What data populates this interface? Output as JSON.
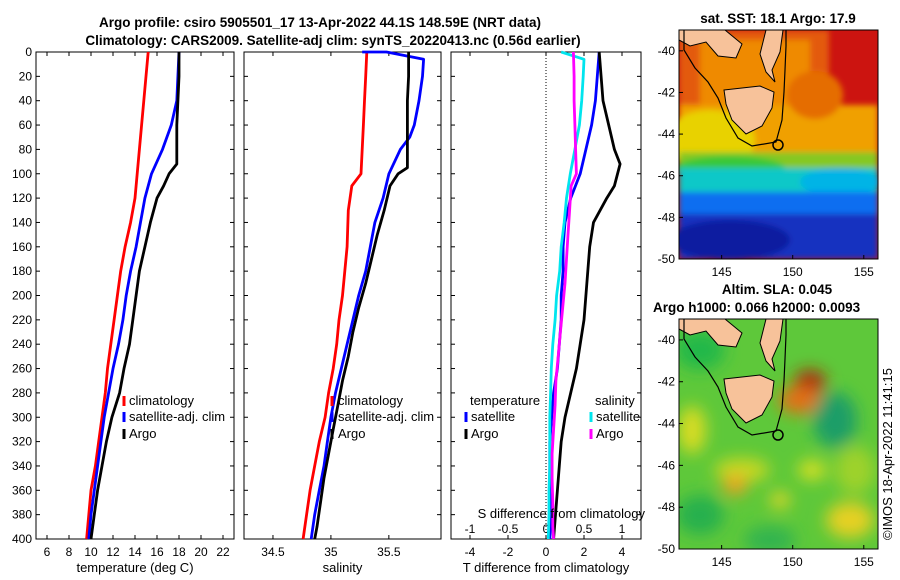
{
  "figure": {
    "title_line1": "Argo profile: csiro 5905501_17 13-Apr-2022 44.1S 148.59E (NRT data)",
    "title_line2": "Climatology: CARS2009. Satellite-adj clim: synTS_20220413.nc (0.56d earlier)",
    "credit": "©IMOS 18-Apr-2022 11:41:15"
  },
  "colors": {
    "climatology": "#ff0000",
    "satellite": "#0000ff",
    "argo": "#000000",
    "sat_salinity": "#00e5ee",
    "argo_salinity": "#ff00ff"
  },
  "chart_data": [
    {
      "id": "temperature",
      "type": "line",
      "xlabel": "temperature (deg C)",
      "ylabel": "",
      "xlim": [
        5,
        23
      ],
      "ylim": [
        400,
        0
      ],
      "xticks": [
        6,
        8,
        10,
        12,
        14,
        16,
        18,
        20,
        22
      ],
      "yticks": [
        0,
        20,
        40,
        60,
        80,
        100,
        120,
        140,
        160,
        180,
        200,
        220,
        240,
        260,
        280,
        300,
        320,
        340,
        360,
        380,
        400
      ],
      "legend": [
        "climatology",
        "satellite-adj. clim",
        "Argo"
      ],
      "series": [
        {
          "name": "climatology",
          "color": "#ff0000",
          "points": [
            [
              15.2,
              0
            ],
            [
              15.0,
              20
            ],
            [
              14.8,
              40
            ],
            [
              14.6,
              60
            ],
            [
              14.4,
              80
            ],
            [
              14.2,
              100
            ],
            [
              14.0,
              120
            ],
            [
              13.6,
              140
            ],
            [
              13.1,
              160
            ],
            [
              12.7,
              180
            ],
            [
              12.4,
              200
            ],
            [
              12.1,
              220
            ],
            [
              11.8,
              240
            ],
            [
              11.5,
              260
            ],
            [
              11.3,
              280
            ],
            [
              11.0,
              300
            ],
            [
              10.7,
              320
            ],
            [
              10.4,
              340
            ],
            [
              10.0,
              360
            ],
            [
              9.8,
              380
            ],
            [
              9.6,
              400
            ]
          ]
        },
        {
          "name": "satellite-adj. clim",
          "color": "#0000ff",
          "points": [
            [
              18.0,
              0
            ],
            [
              17.9,
              20
            ],
            [
              17.8,
              40
            ],
            [
              17.3,
              60
            ],
            [
              16.5,
              80
            ],
            [
              15.5,
              100
            ],
            [
              14.9,
              120
            ],
            [
              14.5,
              140
            ],
            [
              14.1,
              160
            ],
            [
              13.6,
              180
            ],
            [
              13.2,
              200
            ],
            [
              12.9,
              220
            ],
            [
              12.5,
              240
            ],
            [
              12.0,
              260
            ],
            [
              11.6,
              280
            ],
            [
              11.2,
              300
            ],
            [
              10.9,
              320
            ],
            [
              10.6,
              340
            ],
            [
              10.3,
              360
            ],
            [
              10.0,
              380
            ],
            [
              9.8,
              400
            ]
          ]
        },
        {
          "name": "Argo",
          "color": "#000000",
          "points": [
            [
              18.0,
              0
            ],
            [
              18.0,
              20
            ],
            [
              17.9,
              40
            ],
            [
              17.8,
              60
            ],
            [
              17.8,
              80
            ],
            [
              17.8,
              92
            ],
            [
              17.1,
              100
            ],
            [
              16.6,
              110
            ],
            [
              16.0,
              120
            ],
            [
              15.4,
              140
            ],
            [
              14.9,
              160
            ],
            [
              14.4,
              180
            ],
            [
              14.1,
              200
            ],
            [
              13.8,
              220
            ],
            [
              13.5,
              240
            ],
            [
              13.0,
              260
            ],
            [
              12.6,
              280
            ],
            [
              11.9,
              300
            ],
            [
              11.4,
              320
            ],
            [
              11.0,
              340
            ],
            [
              10.6,
              360
            ],
            [
              10.3,
              380
            ],
            [
              10.0,
              400
            ]
          ]
        }
      ]
    },
    {
      "id": "salinity",
      "type": "line",
      "xlabel": "salinity",
      "ylabel": "",
      "xlim": [
        34.25,
        35.95
      ],
      "ylim": [
        400,
        0
      ],
      "xticks": [
        34.5,
        35,
        35.5
      ],
      "legend": [
        "climatology",
        "satellite-adj. clim",
        "Argo"
      ],
      "series": [
        {
          "name": "climatology",
          "color": "#ff0000",
          "points": [
            [
              35.31,
              0
            ],
            [
              35.3,
              20
            ],
            [
              35.29,
              40
            ],
            [
              35.28,
              60
            ],
            [
              35.27,
              80
            ],
            [
              35.26,
              100
            ],
            [
              35.18,
              110
            ],
            [
              35.15,
              130
            ],
            [
              35.14,
              160
            ],
            [
              35.12,
              180
            ],
            [
              35.1,
              200
            ],
            [
              35.07,
              220
            ],
            [
              35.05,
              240
            ],
            [
              35.02,
              260
            ],
            [
              34.98,
              280
            ],
            [
              34.95,
              300
            ],
            [
              34.9,
              320
            ],
            [
              34.86,
              340
            ],
            [
              34.82,
              360
            ],
            [
              34.79,
              380
            ],
            [
              34.76,
              400
            ]
          ]
        },
        {
          "name": "satellite-adj. clim",
          "color": "#0000ff",
          "points": [
            [
              35.27,
              0
            ],
            [
              35.48,
              0
            ],
            [
              35.8,
              6
            ],
            [
              35.79,
              20
            ],
            [
              35.76,
              40
            ],
            [
              35.72,
              60
            ],
            [
              35.68,
              70
            ],
            [
              35.6,
              80
            ],
            [
              35.5,
              100
            ],
            [
              35.45,
              120
            ],
            [
              35.38,
              140
            ],
            [
              35.34,
              160
            ],
            [
              35.3,
              180
            ],
            [
              35.24,
              200
            ],
            [
              35.19,
              220
            ],
            [
              35.14,
              240
            ],
            [
              35.09,
              260
            ],
            [
              35.04,
              280
            ],
            [
              35.0,
              300
            ],
            [
              34.97,
              320
            ],
            [
              34.94,
              340
            ],
            [
              34.9,
              360
            ],
            [
              34.86,
              380
            ],
            [
              34.83,
              400
            ]
          ]
        },
        {
          "name": "Argo",
          "color": "#000000",
          "points": [
            [
              35.67,
              0
            ],
            [
              35.67,
              20
            ],
            [
              35.66,
              40
            ],
            [
              35.66,
              60
            ],
            [
              35.66,
              80
            ],
            [
              35.66,
              95
            ],
            [
              35.58,
              100
            ],
            [
              35.51,
              110
            ],
            [
              35.46,
              130
            ],
            [
              35.4,
              150
            ],
            [
              35.35,
              170
            ],
            [
              35.3,
              190
            ],
            [
              35.24,
              210
            ],
            [
              35.19,
              230
            ],
            [
              35.15,
              250
            ],
            [
              35.1,
              270
            ],
            [
              35.06,
              290
            ],
            [
              35.02,
              310
            ],
            [
              34.98,
              330
            ],
            [
              34.94,
              350
            ],
            [
              34.91,
              370
            ],
            [
              34.88,
              390
            ],
            [
              34.86,
              400
            ]
          ]
        }
      ]
    },
    {
      "id": "difference",
      "type": "line",
      "xlabel": "T difference from climatology",
      "ylabel": "",
      "xlabel_top": "S difference from climatology",
      "xlim": [
        -5,
        5
      ],
      "ylim": [
        400,
        0
      ],
      "xticks": [
        -4,
        -2,
        0,
        2,
        4
      ],
      "xlim_top": [
        -1.25,
        1.25
      ],
      "xticks_top": [
        "-1",
        "-0.5",
        "0",
        "0.5",
        "1"
      ],
      "legend_left_title": "temperature",
      "legend_right_title": "salinity",
      "legend_left": [
        "satellite",
        "Argo"
      ],
      "legend_right": [
        "satellite",
        "Argo"
      ],
      "series": [
        {
          "name": "T satellite",
          "axis": "T",
          "color": "#0000ff",
          "points": [
            [
              2.8,
              0
            ],
            [
              2.7,
              20
            ],
            [
              2.6,
              40
            ],
            [
              2.4,
              60
            ],
            [
              2.1,
              80
            ],
            [
              1.8,
              100
            ],
            [
              1.3,
              120
            ],
            [
              1.0,
              140
            ],
            [
              0.9,
              160
            ],
            [
              0.9,
              180
            ],
            [
              0.8,
              200
            ],
            [
              0.8,
              220
            ],
            [
              0.7,
              240
            ],
            [
              0.6,
              260
            ],
            [
              0.4,
              280
            ],
            [
              0.3,
              300
            ],
            [
              0.2,
              320
            ],
            [
              0.2,
              340
            ],
            [
              0.2,
              360
            ],
            [
              0.3,
              380
            ],
            [
              0.2,
              400
            ]
          ]
        },
        {
          "name": "T Argo",
          "axis": "T",
          "color": "#000000",
          "points": [
            [
              2.8,
              0
            ],
            [
              2.9,
              20
            ],
            [
              3.0,
              40
            ],
            [
              3.3,
              60
            ],
            [
              3.6,
              80
            ],
            [
              3.9,
              92
            ],
            [
              3.6,
              110
            ],
            [
              3.2,
              120
            ],
            [
              2.5,
              140
            ],
            [
              2.3,
              160
            ],
            [
              2.2,
              180
            ],
            [
              2.1,
              200
            ],
            [
              2.0,
              220
            ],
            [
              1.8,
              240
            ],
            [
              1.6,
              260
            ],
            [
              1.3,
              280
            ],
            [
              1.0,
              300
            ],
            [
              0.8,
              320
            ],
            [
              0.7,
              340
            ],
            [
              0.6,
              360
            ],
            [
              0.5,
              380
            ],
            [
              0.4,
              400
            ]
          ]
        },
        {
          "name": "S satellite",
          "axis": "S",
          "color": "#00e5ee",
          "points": [
            [
              0.2,
              0
            ],
            [
              0.5,
              6
            ],
            [
              0.49,
              20
            ],
            [
              0.47,
              40
            ],
            [
              0.44,
              60
            ],
            [
              0.38,
              80
            ],
            [
              0.32,
              100
            ],
            [
              0.27,
              120
            ],
            [
              0.24,
              140
            ],
            [
              0.2,
              160
            ],
            [
              0.18,
              180
            ],
            [
              0.14,
              200
            ],
            [
              0.12,
              220
            ],
            [
              0.09,
              240
            ],
            [
              0.07,
              260
            ],
            [
              0.06,
              280
            ],
            [
              0.05,
              300
            ],
            [
              0.05,
              320
            ],
            [
              0.05,
              340
            ],
            [
              0.04,
              360
            ],
            [
              0.04,
              380
            ],
            [
              0.03,
              400
            ]
          ]
        },
        {
          "name": "S Argo",
          "axis": "S",
          "color": "#ff00ff",
          "points": [
            [
              0.36,
              0
            ],
            [
              0.37,
              20
            ],
            [
              0.37,
              40
            ],
            [
              0.38,
              60
            ],
            [
              0.39,
              80
            ],
            [
              0.4,
              100
            ],
            [
              0.33,
              110
            ],
            [
              0.31,
              130
            ],
            [
              0.29,
              150
            ],
            [
              0.27,
              170
            ],
            [
              0.25,
              190
            ],
            [
              0.22,
              210
            ],
            [
              0.19,
              230
            ],
            [
              0.16,
              250
            ],
            [
              0.13,
              270
            ],
            [
              0.12,
              290
            ],
            [
              0.1,
              310
            ],
            [
              0.08,
              330
            ],
            [
              0.08,
              350
            ],
            [
              0.09,
              370
            ],
            [
              0.09,
              390
            ],
            [
              0.1,
              400
            ]
          ]
        }
      ]
    },
    {
      "id": "sst_map",
      "type": "heatmap",
      "title": "sat. SST: 18.1 Argo: 17.9",
      "xlim": [
        142,
        156
      ],
      "ylim": [
        -50,
        -39
      ],
      "xticks": [
        145,
        150,
        155
      ],
      "yticks": [
        -40,
        -42,
        -44,
        -46,
        -48,
        -50
      ],
      "argo_position": [
        148.59,
        -44.1
      ]
    },
    {
      "id": "sla_map",
      "type": "heatmap",
      "title_line1": "Altim. SLA: 0.045",
      "title_line2": "Argo h1000: 0.066 h2000: 0.0093",
      "xlim": [
        142,
        156
      ],
      "ylim": [
        -50,
        -39
      ],
      "xticks": [
        145,
        150,
        155
      ],
      "yticks": [
        -40,
        -42,
        -44,
        -46,
        -48,
        -50
      ],
      "argo_position": [
        148.59,
        -44.1
      ]
    }
  ]
}
